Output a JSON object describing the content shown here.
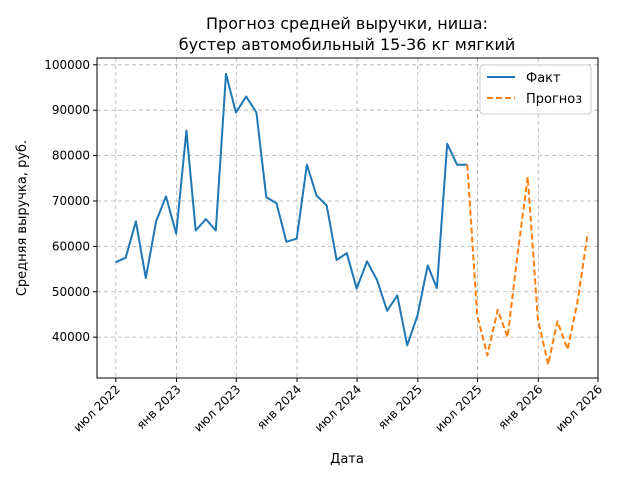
{
  "chart_data": {
    "type": "line",
    "title_lines": [
      "Прогноз средней выручки, ниша:",
      "бустер автомобильный 15-36 кг мягкий"
    ],
    "xlabel": "Дата",
    "ylabel": "Средняя выручка, руб.",
    "x_range": [
      "2022-05-05",
      "2026-07-01"
    ],
    "ylim": [
      31000,
      101500
    ],
    "y_ticks": [
      40000,
      50000,
      60000,
      70000,
      80000,
      90000,
      100000
    ],
    "x_ticks": [
      {
        "date": "2022-07-01",
        "label": "июл 2022"
      },
      {
        "date": "2023-01-01",
        "label": "янв 2023"
      },
      {
        "date": "2023-07-01",
        "label": "июл 2023"
      },
      {
        "date": "2024-01-01",
        "label": "янв 2024"
      },
      {
        "date": "2024-07-01",
        "label": "июл 2024"
      },
      {
        "date": "2025-01-01",
        "label": "янв 2025"
      },
      {
        "date": "2025-07-01",
        "label": "июл 2025"
      },
      {
        "date": "2026-01-01",
        "label": "янв 2026"
      },
      {
        "date": "2026-07-01",
        "label": "июл 2026"
      }
    ],
    "grid": true,
    "legend_position": "top-right",
    "series": [
      {
        "name": "Факт",
        "color": "#1f77b4",
        "style": "solid",
        "x": [
          "2022-06-30",
          "2022-07-31",
          "2022-08-31",
          "2022-09-30",
          "2022-10-31",
          "2022-11-30",
          "2022-12-31",
          "2023-01-31",
          "2023-02-28",
          "2023-03-31",
          "2023-04-30",
          "2023-05-31",
          "2023-06-30",
          "2023-07-31",
          "2023-08-31",
          "2023-09-30",
          "2023-10-31",
          "2023-11-30",
          "2023-12-31",
          "2024-01-31",
          "2024-02-29",
          "2024-03-31",
          "2024-04-30",
          "2024-05-31",
          "2024-06-30",
          "2024-07-31",
          "2024-08-31",
          "2024-09-30",
          "2024-10-31",
          "2024-11-30",
          "2024-12-31",
          "2025-01-31",
          "2025-02-28",
          "2025-03-31",
          "2025-04-30",
          "2025-05-31"
        ],
        "y": [
          56500,
          57500,
          65500,
          53000,
          65500,
          71000,
          62800,
          85500,
          63500,
          66000,
          63500,
          98000,
          89500,
          93000,
          89500,
          70800,
          69500,
          61000,
          61700,
          78000,
          71200,
          69000,
          57000,
          58500,
          50700,
          56700,
          52500,
          45800,
          49200,
          38200,
          44800,
          55800,
          50800,
          82600,
          78000,
          78000
        ]
      },
      {
        "name": "Прогноз",
        "color": "#ff7f0e",
        "style": "dashed",
        "x": [
          "2025-05-31",
          "2025-06-30",
          "2025-07-31",
          "2025-08-31",
          "2025-09-30",
          "2025-10-31",
          "2025-11-30",
          "2025-12-31",
          "2026-01-31",
          "2026-02-28",
          "2026-03-31",
          "2026-04-30",
          "2026-05-31"
        ],
        "y": [
          78000,
          44800,
          36000,
          46000,
          40000,
          58700,
          75300,
          43900,
          34000,
          43500,
          37300,
          47800,
          63000
        ]
      }
    ]
  }
}
